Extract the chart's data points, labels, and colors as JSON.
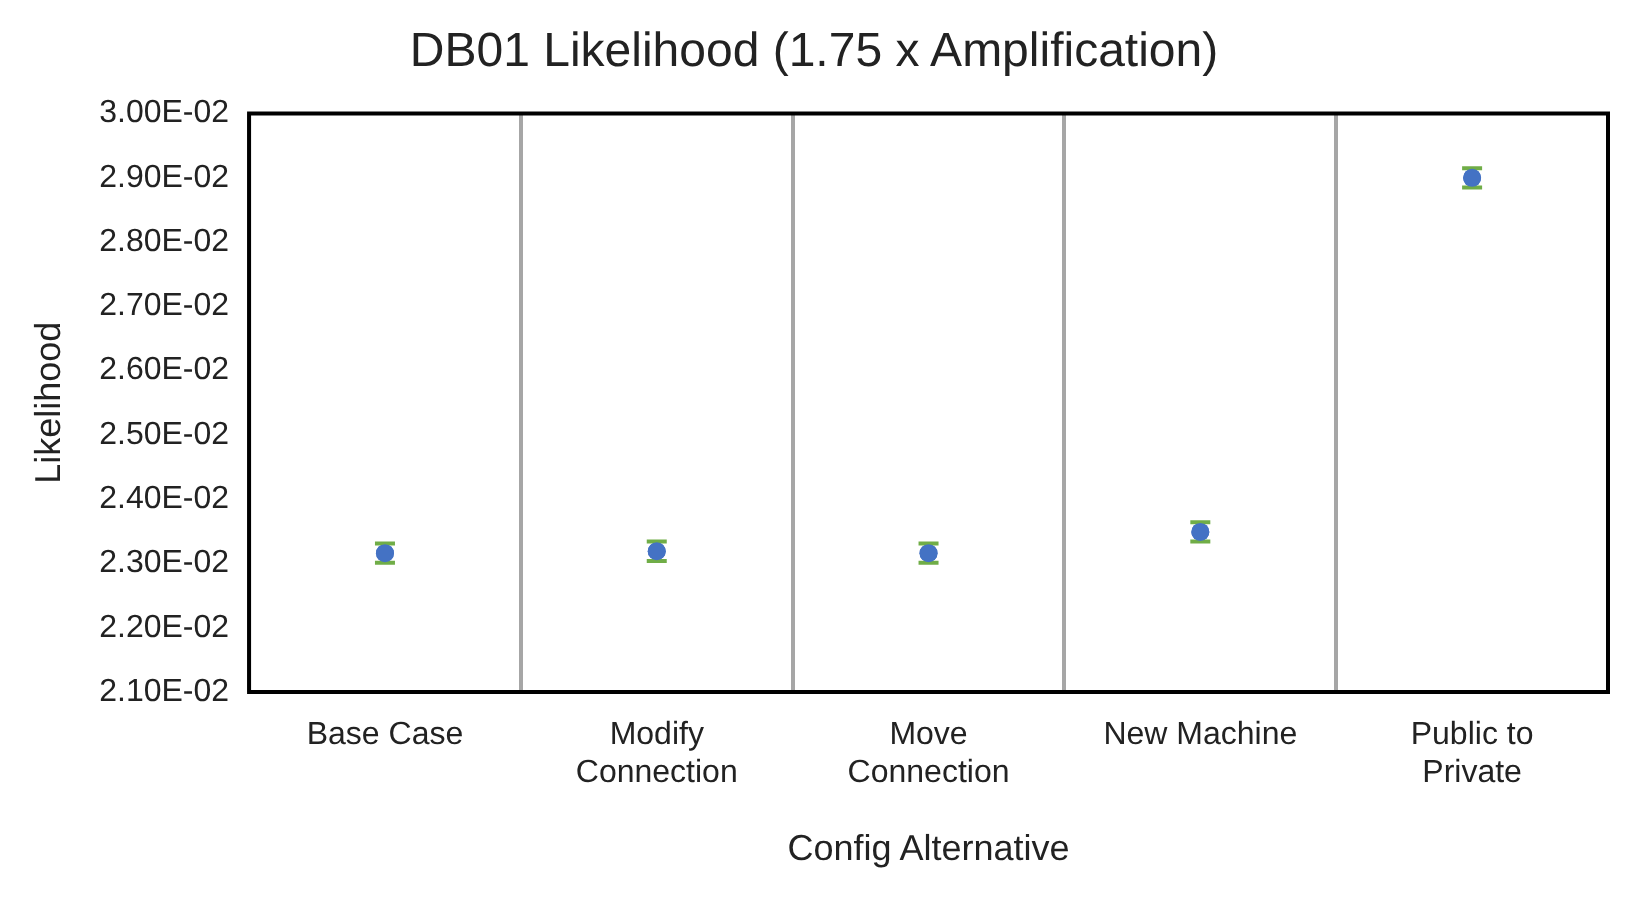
{
  "chart_data": {
    "type": "scatter",
    "title": "DB01 Likelihood (1.75 x Amplification)",
    "xlabel": "Config Alternative",
    "ylabel": "Likelihood",
    "categories": [
      "Base Case",
      "Modify Connection",
      "Move Connection",
      "New Machine",
      "Public to Private"
    ],
    "series": [
      {
        "color": "#4472c4",
        "values": [
          0.02316,
          0.02319,
          0.02316,
          0.02349,
          0.029
        ],
        "errors": [
          0.00015,
          0.00015,
          0.00015,
          0.00015,
          0.00015
        ]
      }
    ],
    "ylim": [
      0.021,
      0.03
    ],
    "yticks": [
      {
        "value": 0.021,
        "label": "2.10E-02"
      },
      {
        "value": 0.022,
        "label": "2.20E-02"
      },
      {
        "value": 0.023,
        "label": "2.30E-02"
      },
      {
        "value": 0.024,
        "label": "2.40E-02"
      },
      {
        "value": 0.025,
        "label": "2.50E-02"
      },
      {
        "value": 0.026,
        "label": "2.60E-02"
      },
      {
        "value": 0.027,
        "label": "2.70E-02"
      },
      {
        "value": 0.028,
        "label": "2.80E-02"
      },
      {
        "value": 0.029,
        "label": "2.90E-02"
      },
      {
        "value": 0.03,
        "label": "3.00E-02"
      }
    ],
    "grid": "x",
    "marker": "circle"
  }
}
